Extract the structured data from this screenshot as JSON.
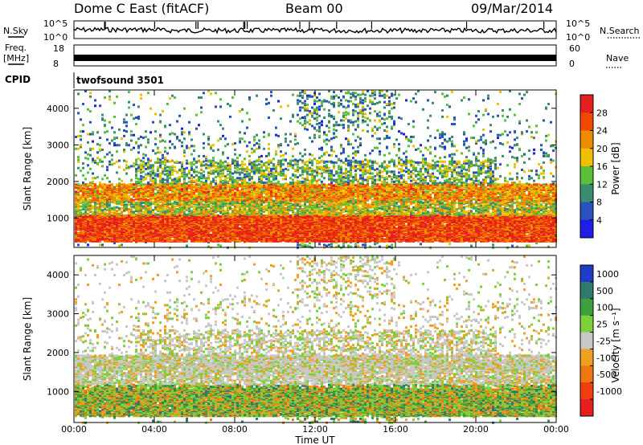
{
  "header": {
    "station": "Dome C East (fitACF)",
    "beam": "Beam 00",
    "date": "09/Mar/2014"
  },
  "strips": {
    "nsky_label": "N.Sky",
    "nsky_ticks": [
      "10^5",
      "10^0"
    ],
    "nsearch_label": "N.Search",
    "nsearch_ticks": [
      "10^5",
      "10^0"
    ],
    "freq_label_1": "Freq.",
    "freq_label_2": "[MHz]",
    "freq_ticks": [
      "18",
      "8"
    ],
    "nave_label": "Nave",
    "nave_ticks": [
      "60",
      "0"
    ],
    "cpid_label": "CPID",
    "cpid_text": "twofsound 3501"
  },
  "chart_data": [
    {
      "type": "heatmap",
      "panel": "power",
      "ylabel": "Slant Range [km]",
      "yticks": [
        "1000",
        "2000",
        "3000",
        "4000"
      ],
      "ylim": [
        200,
        4500
      ],
      "colorbar_label": "Power [dB]",
      "colorbar_ticks": [
        "4",
        "8",
        "12",
        "16",
        "20",
        "24",
        "28"
      ],
      "colorbar_colors": [
        "#1e1ee6",
        "#2a52be",
        "#3c8c6e",
        "#5cbf3c",
        "#f0c000",
        "#f08a00",
        "#f04a00",
        "#e61e1e"
      ],
      "regions": [
        {
          "x0": 0,
          "x1": 24,
          "y0": 400,
          "y1": 1100,
          "level": "high"
        },
        {
          "x0": 0,
          "x1": 24,
          "y0": 1200,
          "y1": 1900,
          "level": "mid"
        },
        {
          "x0": 4,
          "x1": 20,
          "y0": 1900,
          "y1": 2600,
          "level": "low"
        },
        {
          "x0": 12,
          "x1": 16,
          "y0": 3000,
          "y1": 4500,
          "level": "low"
        }
      ]
    },
    {
      "type": "heatmap",
      "panel": "velocity",
      "ylabel": "Slant Range [km]",
      "yticks": [
        "1000",
        "2000",
        "3000",
        "4000"
      ],
      "ylim": [
        200,
        4500
      ],
      "xlabel": "Time UT",
      "xticks": [
        "00:00",
        "04:00",
        "08:00",
        "12:00",
        "16:00",
        "20:00",
        "00:00"
      ],
      "colorbar_label": "Velocity [m s⁻¹]",
      "colorbar_ticks": [
        "1000",
        "500",
        "100",
        "25",
        "-25",
        "-100",
        "-500",
        "-1000"
      ],
      "colorbar_colors": [
        "#1e3cc8",
        "#2e7a6e",
        "#3ca03c",
        "#7ed03a",
        "#c8c8c8",
        "#f0a020",
        "#f07810",
        "#f03c10",
        "#e61e1e"
      ]
    }
  ]
}
